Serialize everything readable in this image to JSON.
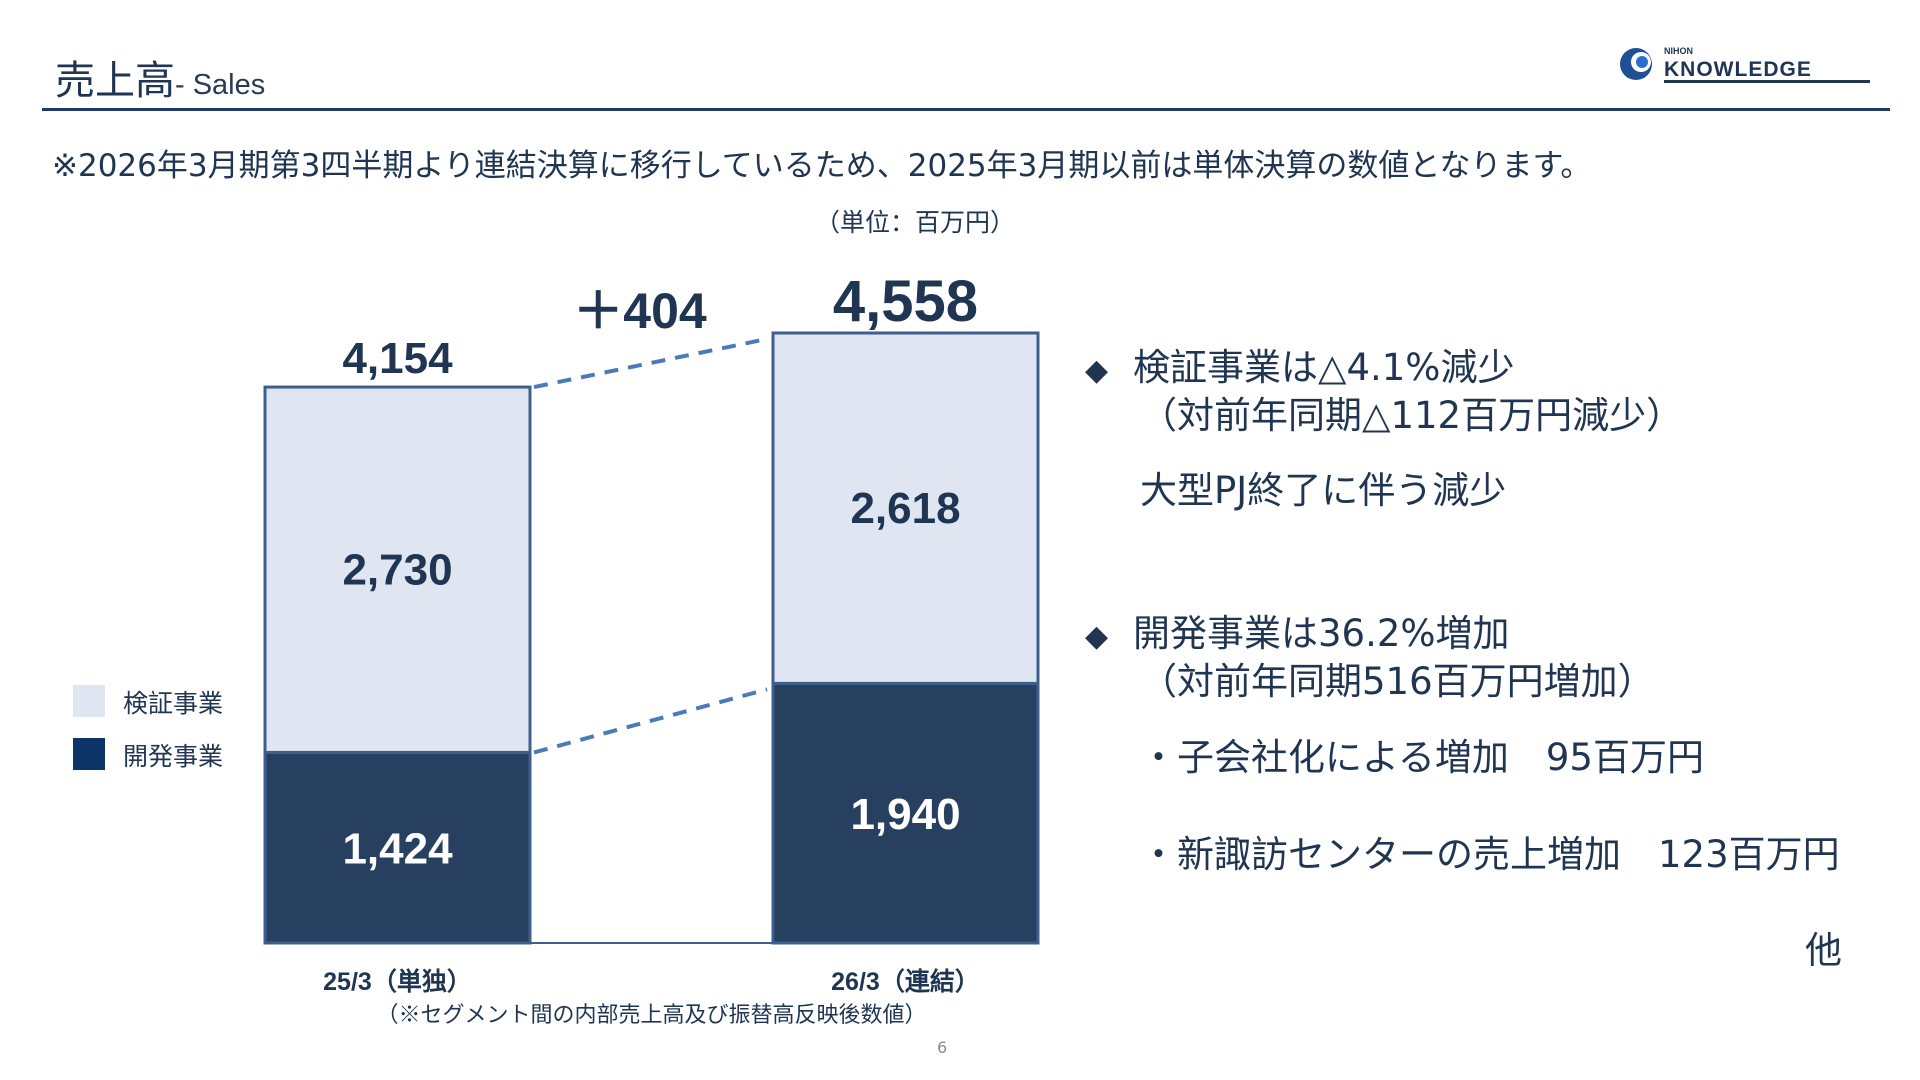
{
  "header": {
    "title": "売上高",
    "subtitle": "- Sales",
    "logo_top": "NIHON",
    "logo_main": "KNOWLEDGE"
  },
  "note": "※2026年3月期第3四半期より連結決算に移行しているため、2025年3月期以前は単体決算の数値となります。",
  "unit": "（単位：百万円）",
  "chart_data": {
    "type": "bar",
    "stacked": true,
    "categories": [
      "25/3（単独）",
      "26/3（連結）"
    ],
    "series": [
      {
        "name": "開発事業",
        "values": [
          1424,
          1940
        ],
        "color": "#27405f"
      },
      {
        "name": "検証事業",
        "values": [
          2730,
          2618
        ],
        "color": "#dfe6f2"
      }
    ],
    "totals": [
      "4,154",
      "4,558"
    ],
    "segment_labels": [
      [
        "1,424",
        "2,730"
      ],
      [
        "1,940",
        "2,618"
      ]
    ],
    "change_label": "＋404",
    "footnote": "（※セグメント間の内部売上高及び振替高反映後数値）",
    "ylim": [
      0,
      4558
    ],
    "legend": [
      {
        "name": "検証事業",
        "color": "#dfe6f2"
      },
      {
        "name": "開発事業",
        "color": "#0c3466"
      }
    ],
    "legend_position": "left",
    "grid": false
  },
  "commentary": {
    "verification": {
      "heading": "検証事業は△4.1%減少",
      "detail": "（対前年同期△112百万円減少）",
      "reason": "大型PJ終了に伴う減少"
    },
    "development": {
      "heading": "開発事業は36.2%増加",
      "detail": "（対前年同期516百万円増加）",
      "item1": "・子会社化による増加　95百万円",
      "item2": "・新諏訪センターの売上増加　123百万円",
      "other": "他"
    }
  },
  "page_number": "6",
  "colors": {
    "navy": "#1f3552",
    "bar_border": "#3d5f8e",
    "dashed_line": "#4b7ab8"
  }
}
